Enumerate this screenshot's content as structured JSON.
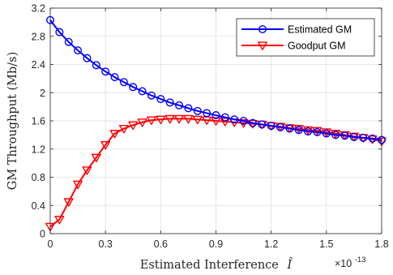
{
  "chart_data": {
    "type": "line",
    "xlabel": "Estimated Interference",
    "xlabel_symbol": "Î",
    "ylabel": "GM Throughput (Mb/s)",
    "x_multiplier": "×10",
    "x_multiplier_exp": "-13",
    "xlim": [
      0,
      1.8
    ],
    "ylim": [
      0,
      3.2
    ],
    "xticks": [
      "0",
      "0.3",
      "0.6",
      "0.9",
      "1.2",
      "1.5",
      "1.8"
    ],
    "yticks": [
      "0",
      "0.4",
      "0.8",
      "1.2",
      "1.6",
      "2",
      "2.4",
      "2.8",
      "3.2"
    ],
    "grid": true,
    "legend_position": "top-right",
    "x": [
      0,
      0.05,
      0.1,
      0.15,
      0.2,
      0.25,
      0.3,
      0.35,
      0.4,
      0.45,
      0.5,
      0.55,
      0.6,
      0.65,
      0.7,
      0.75,
      0.8,
      0.85,
      0.9,
      0.95,
      1.0,
      1.05,
      1.1,
      1.15,
      1.2,
      1.25,
      1.3,
      1.35,
      1.4,
      1.45,
      1.5,
      1.55,
      1.6,
      1.65,
      1.7,
      1.75,
      1.8
    ],
    "series": [
      {
        "name": "Estimated GM",
        "color": "#0000ff",
        "marker": "circle",
        "values": [
          3.03,
          2.86,
          2.72,
          2.6,
          2.49,
          2.39,
          2.3,
          2.22,
          2.15,
          2.08,
          2.02,
          1.96,
          1.91,
          1.86,
          1.82,
          1.78,
          1.74,
          1.71,
          1.68,
          1.65,
          1.62,
          1.6,
          1.57,
          1.55,
          1.53,
          1.51,
          1.49,
          1.47,
          1.45,
          1.44,
          1.42,
          1.4,
          1.39,
          1.37,
          1.36,
          1.35,
          1.33
        ]
      },
      {
        "name": "Goodput GM",
        "color": "#ff0000",
        "marker": "triangle-down",
        "values": [
          0.1,
          0.2,
          0.45,
          0.7,
          0.9,
          1.08,
          1.26,
          1.42,
          1.49,
          1.54,
          1.58,
          1.61,
          1.62,
          1.63,
          1.63,
          1.63,
          1.62,
          1.61,
          1.6,
          1.59,
          1.58,
          1.57,
          1.56,
          1.55,
          1.53,
          1.52,
          1.5,
          1.49,
          1.47,
          1.46,
          1.44,
          1.42,
          1.4,
          1.38,
          1.36,
          1.34,
          1.31
        ]
      }
    ]
  }
}
